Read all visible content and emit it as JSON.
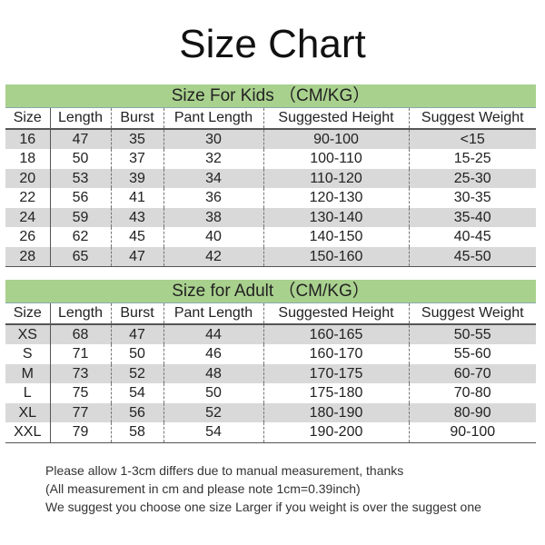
{
  "title": "Size Chart",
  "columns": [
    "Size",
    "Length",
    "Burst",
    "Pant Length",
    "Suggested Height",
    "Suggest Weight"
  ],
  "kids": {
    "heading": "Size For Kids （CM/KG）",
    "rows": [
      [
        "16",
        "47",
        "35",
        "30",
        "90-100",
        "<15"
      ],
      [
        "18",
        "50",
        "37",
        "32",
        "100-110",
        "15-25"
      ],
      [
        "20",
        "53",
        "39",
        "34",
        "110-120",
        "25-30"
      ],
      [
        "22",
        "56",
        "41",
        "36",
        "120-130",
        "30-35"
      ],
      [
        "24",
        "59",
        "43",
        "38",
        "130-140",
        "35-40"
      ],
      [
        "26",
        "62",
        "45",
        "40",
        "140-150",
        "40-45"
      ],
      [
        "28",
        "65",
        "47",
        "42",
        "150-160",
        "45-50"
      ]
    ]
  },
  "adult": {
    "heading": "Size for Adult （CM/KG）",
    "rows": [
      [
        "XS",
        "68",
        "47",
        "44",
        "160-165",
        "50-55"
      ],
      [
        "S",
        "71",
        "50",
        "46",
        "160-170",
        "55-60"
      ],
      [
        "M",
        "73",
        "52",
        "48",
        "170-175",
        "60-70"
      ],
      [
        "L",
        "75",
        "54",
        "50",
        "175-180",
        "70-80"
      ],
      [
        "XL",
        "77",
        "56",
        "52",
        "180-190",
        "80-90"
      ],
      [
        "XXL",
        "79",
        "58",
        "54",
        "190-200",
        "90-100"
      ]
    ]
  },
  "notes": [
    "Please allow 1-3cm differs due to manual measurement, thanks",
    "(All measurement in cm and please note 1cm=0.39inch)",
    "We suggest you choose one size Larger if you weight is over the suggest one"
  ],
  "colors": {
    "band": "#a9d18e",
    "alt_row": "#d9d9d9"
  }
}
